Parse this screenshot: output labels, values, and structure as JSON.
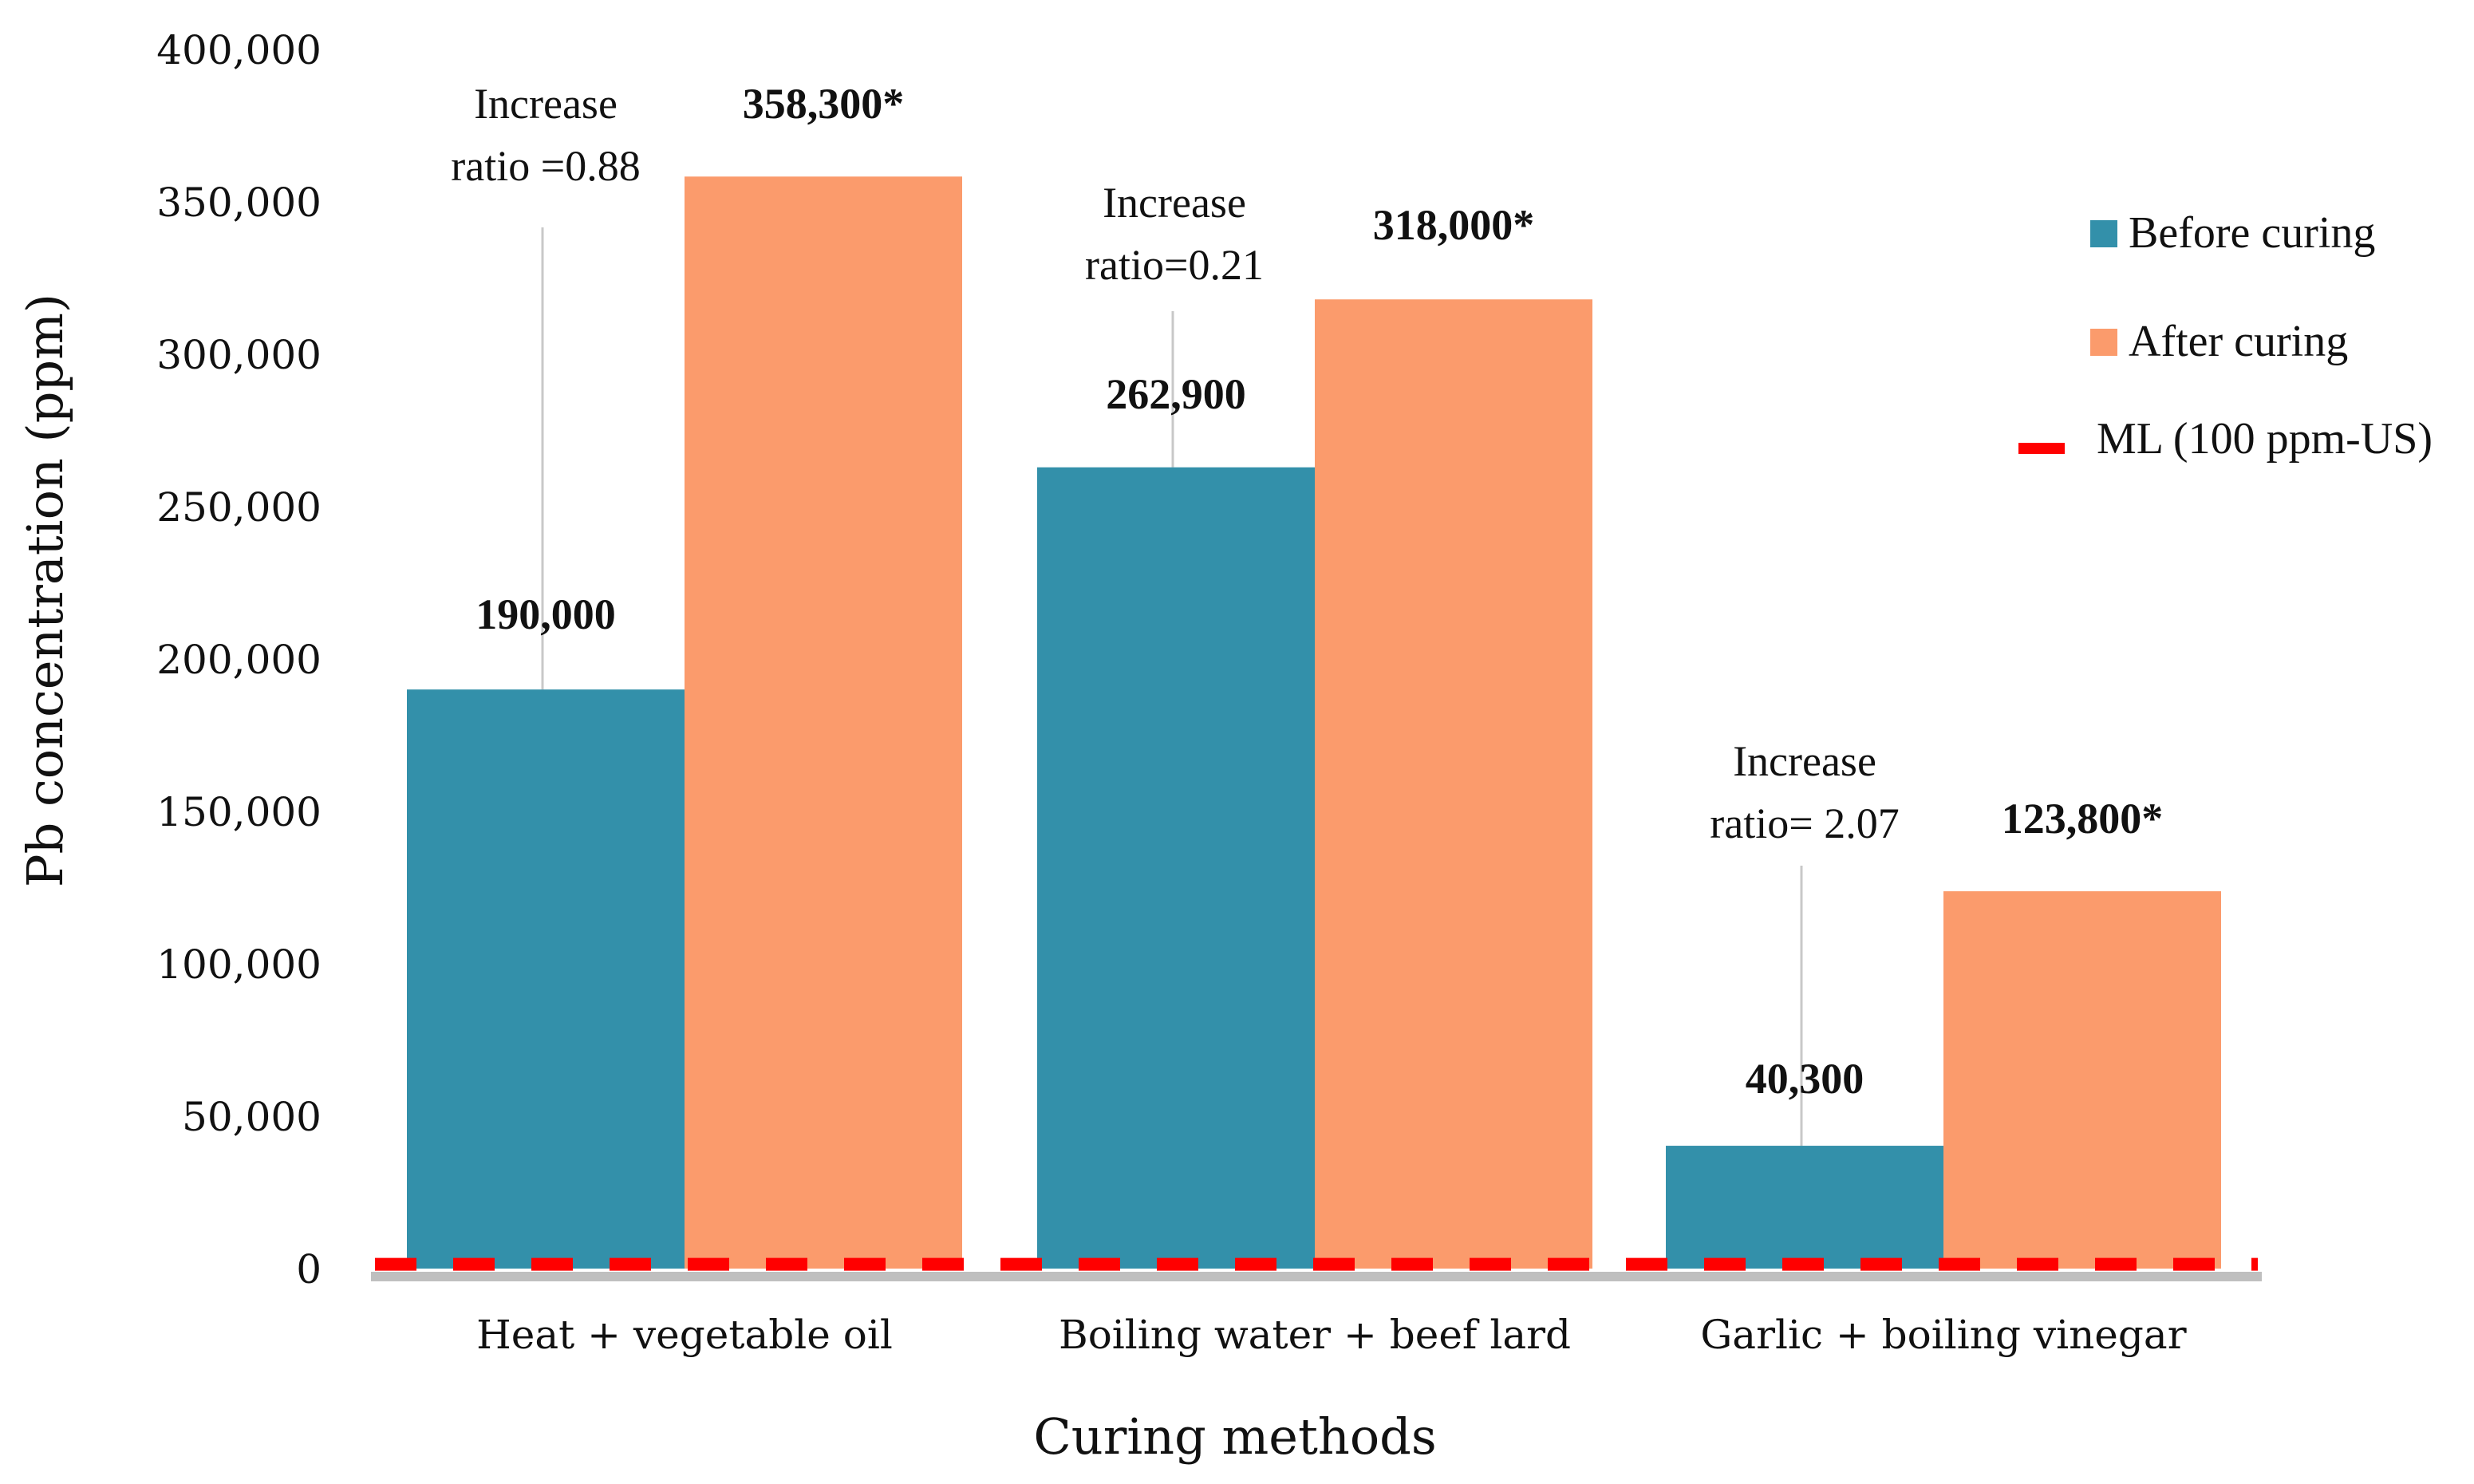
{
  "chart_data": {
    "type": "bar",
    "title": "",
    "xlabel": "Curing methods",
    "ylabel": "Pb concentration (ppm)",
    "ylim": [
      0,
      400000
    ],
    "ytick_step": 50000,
    "ytick_labels": [
      "0",
      "50,000",
      "100,000",
      "150,000",
      "200,000",
      "250,000",
      "300,000",
      "350,000",
      "400,000"
    ],
    "grid": false,
    "legend_position": "right",
    "categories": [
      "Heat + vegetable oil",
      "Boiling water + beef lard",
      "Garlic + boiling vinegar"
    ],
    "series": [
      {
        "name": "Before curing",
        "color": "#3390aa",
        "values": [
          190000,
          262900,
          40300
        ],
        "labels": [
          "190,000",
          "262,900",
          "40,300"
        ]
      },
      {
        "name": "After curing",
        "color": "#fb9b6c",
        "values": [
          358300,
          318000,
          123800
        ],
        "labels": [
          "358,300*",
          "318,000*",
          "123,800*"
        ]
      }
    ],
    "reference_line": {
      "name": "ML (100 ppm-US)",
      "value": 100,
      "color": "#ff0000",
      "style": "dashed"
    },
    "annotations": [
      {
        "category": 0,
        "line1": "Increase",
        "line2": "ratio =0.88"
      },
      {
        "category": 1,
        "line1": "Increase",
        "line2": "ratio=0.21"
      },
      {
        "category": 2,
        "line1": "Increase",
        "line2": "ratio= 2.07"
      }
    ]
  }
}
